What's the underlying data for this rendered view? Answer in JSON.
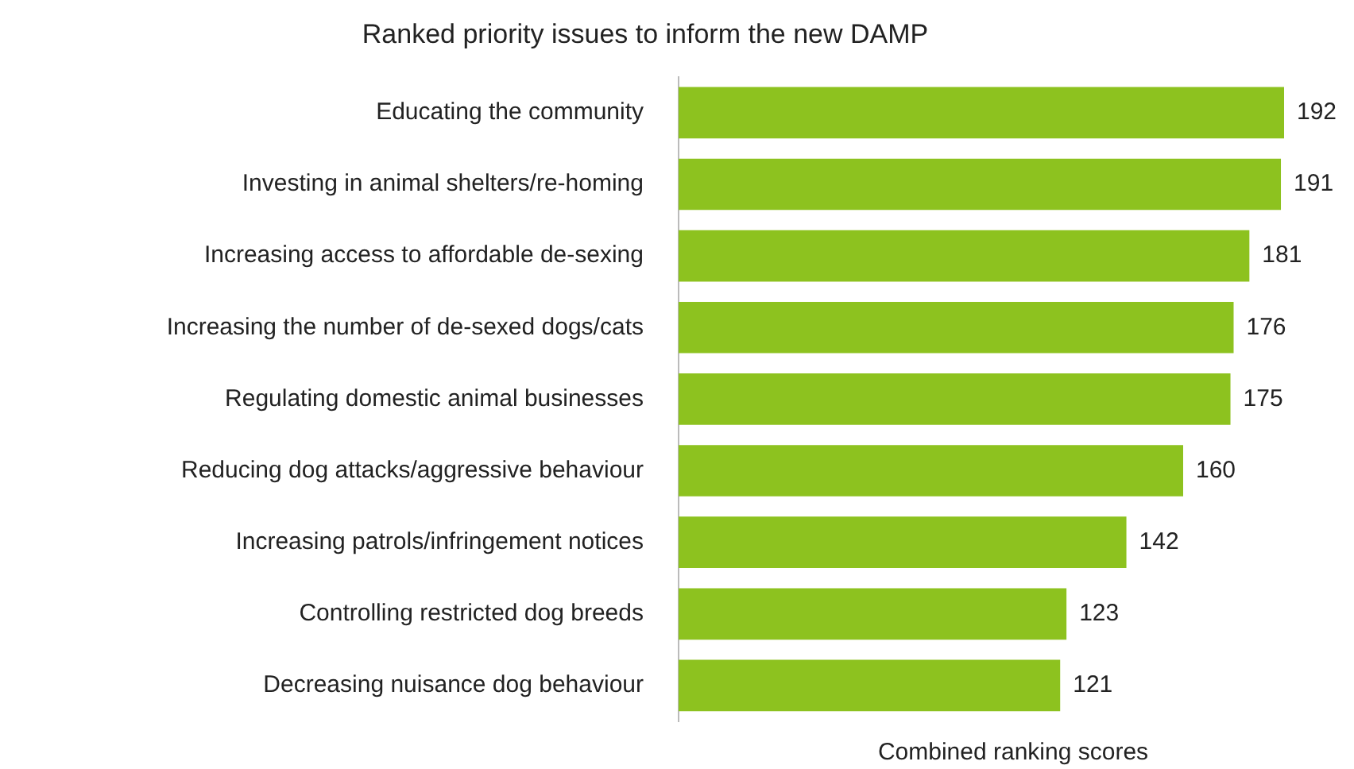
{
  "chart_data": {
    "type": "bar",
    "orientation": "horizontal",
    "title": "Ranked priority issues to inform the new DAMP",
    "xlabel": "Combined ranking scores",
    "categories": [
      "Educating the community",
      "Investing in animal shelters/re-homing",
      "Increasing access to affordable de-sexing",
      "Increasing the number of de-sexed dogs/cats",
      "Regulating domestic animal businesses",
      "Reducing dog attacks/aggressive behaviour",
      "Increasing patrols/infringement notices",
      "Controlling restricted dog breeds",
      "Decreasing nuisance dog behaviour"
    ],
    "values": [
      192,
      191,
      181,
      176,
      175,
      160,
      142,
      123,
      121
    ],
    "color": "#8dc21f",
    "tick_labels": "y",
    "data_labels": true
  }
}
